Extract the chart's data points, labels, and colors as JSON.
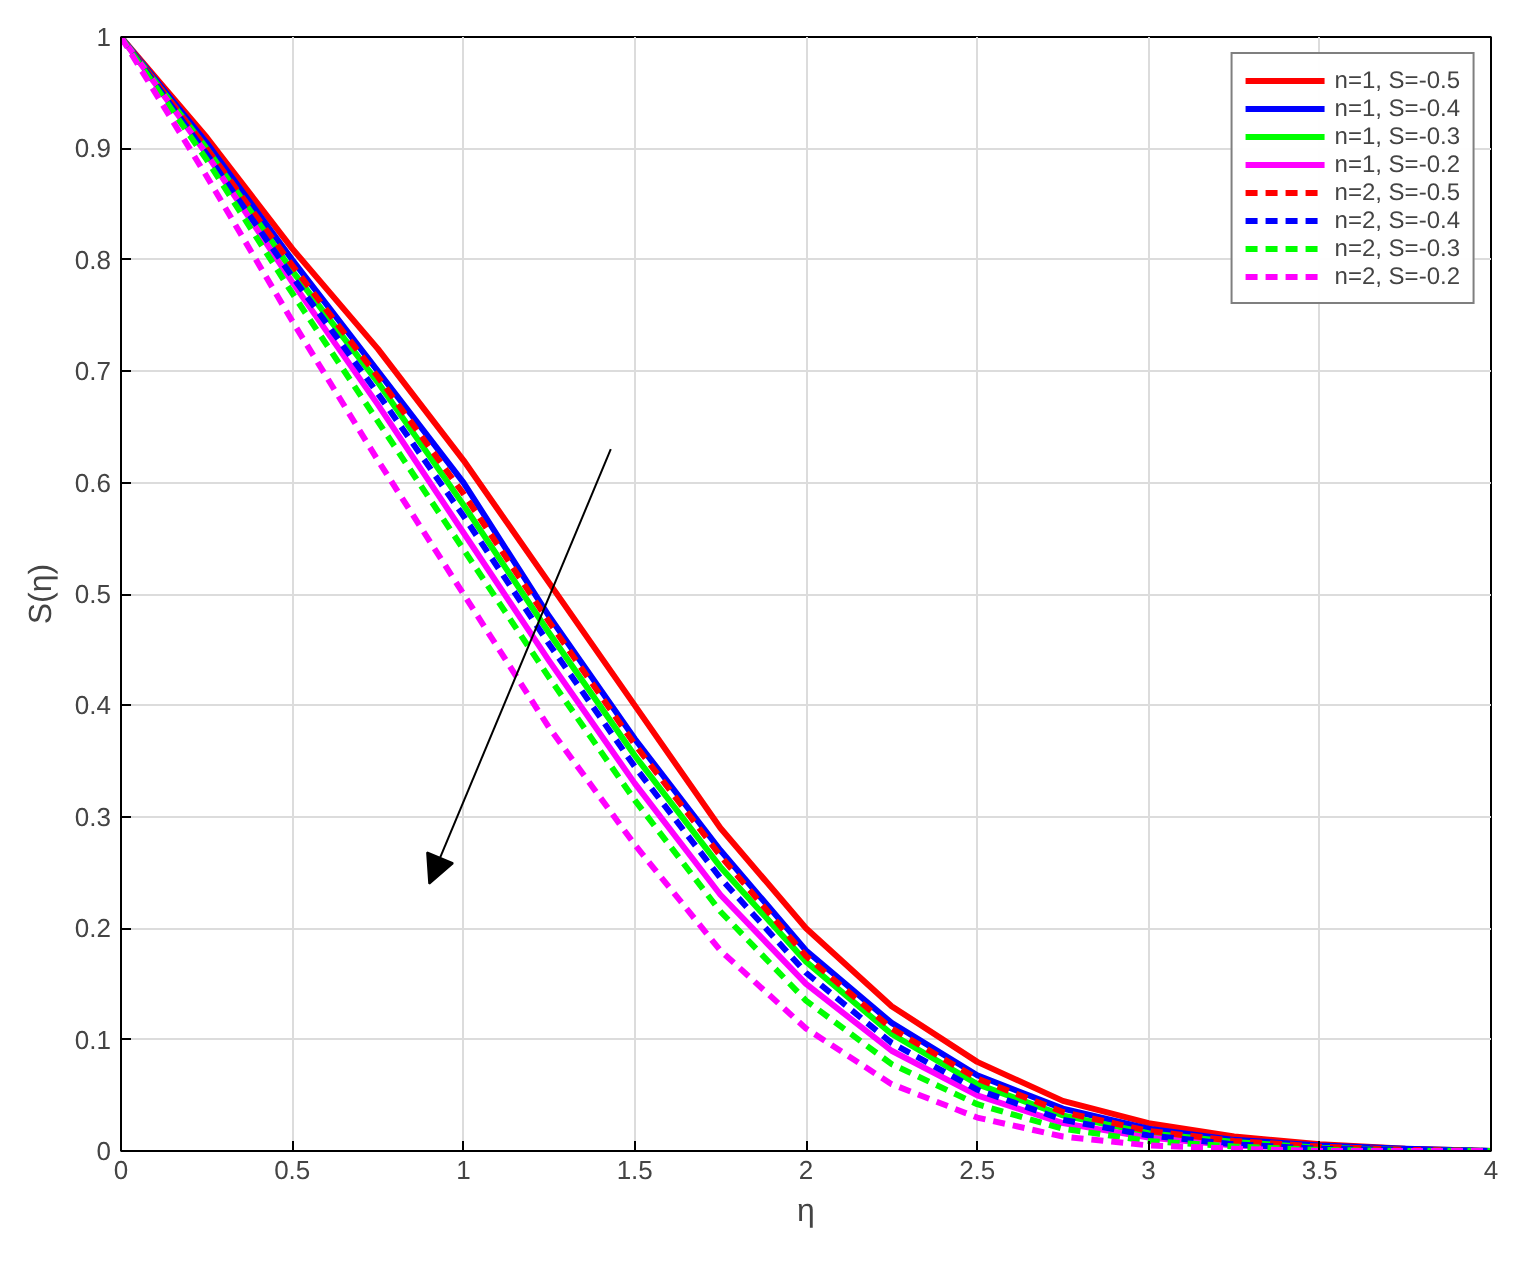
{
  "chart_data": {
    "type": "line",
    "xlabel": "η",
    "ylabel": "S(η)",
    "xlim": [
      0,
      4
    ],
    "ylim": [
      0,
      1
    ],
    "xticks": [
      0,
      0.5,
      1,
      1.5,
      2,
      2.5,
      3,
      3.5,
      4
    ],
    "yticks": [
      0,
      0.1,
      0.2,
      0.3,
      0.4,
      0.5,
      0.6,
      0.7,
      0.8,
      0.9,
      1
    ],
    "grid": true,
    "legend": "top right",
    "x": [
      0,
      0.25,
      0.5,
      0.75,
      1,
      1.25,
      1.5,
      1.75,
      2,
      2.25,
      2.5,
      2.75,
      3,
      3.25,
      3.5,
      3.75,
      4
    ],
    "series": [
      {
        "name": "n=1, S=-0.5",
        "color": "#ff0000",
        "line_style": "solid",
        "values": [
          1,
          0.91,
          0.81,
          0.72,
          0.62,
          0.51,
          0.4,
          0.29,
          0.2,
          0.13,
          0.08,
          0.045,
          0.025,
          0.013,
          0.006,
          0.002,
          0
        ]
      },
      {
        "name": "n=1, S=-0.4",
        "color": "#0000ff",
        "line_style": "solid",
        "values": [
          1,
          0.905,
          0.8,
          0.7,
          0.6,
          0.48,
          0.37,
          0.27,
          0.18,
          0.115,
          0.068,
          0.038,
          0.02,
          0.01,
          0.005,
          0.002,
          0
        ]
      },
      {
        "name": "n=1, S=-0.3",
        "color": "#00ff00",
        "line_style": "solid",
        "values": [
          1,
          0.9,
          0.79,
          0.69,
          0.58,
          0.465,
          0.355,
          0.255,
          0.17,
          0.105,
          0.06,
          0.032,
          0.016,
          0.008,
          0.003,
          0.001,
          0
        ]
      },
      {
        "name": "n=1, S=-0.2",
        "color": "#ff00ff",
        "line_style": "solid",
        "values": [
          1,
          0.895,
          0.78,
          0.67,
          0.555,
          0.44,
          0.33,
          0.23,
          0.15,
          0.09,
          0.05,
          0.025,
          0.012,
          0.005,
          0.002,
          0,
          0
        ]
      },
      {
        "name": "n=2, S=-0.5",
        "color": "#ff0000",
        "line_style": "dashed",
        "values": [
          1,
          0.9,
          0.795,
          0.695,
          0.59,
          0.475,
          0.365,
          0.265,
          0.175,
          0.11,
          0.065,
          0.035,
          0.018,
          0.009,
          0.004,
          0.001,
          0
        ]
      },
      {
        "name": "n=2, S=-0.4",
        "color": "#0000ff",
        "line_style": "dashed",
        "values": [
          1,
          0.895,
          0.785,
          0.68,
          0.57,
          0.455,
          0.345,
          0.245,
          0.16,
          0.097,
          0.055,
          0.028,
          0.014,
          0.006,
          0.002,
          0.001,
          0
        ]
      },
      {
        "name": "n=2, S=-0.3",
        "color": "#00ff00",
        "line_style": "dashed",
        "values": [
          1,
          0.89,
          0.77,
          0.655,
          0.54,
          0.425,
          0.315,
          0.215,
          0.135,
          0.078,
          0.042,
          0.02,
          0.009,
          0.004,
          0.001,
          0,
          0
        ]
      },
      {
        "name": "n=2, S=-0.2",
        "color": "#ff00ff",
        "line_style": "dashed",
        "values": [
          1,
          0.875,
          0.745,
          0.62,
          0.5,
          0.38,
          0.275,
          0.18,
          0.11,
          0.06,
          0.03,
          0.013,
          0.005,
          0.002,
          0,
          0,
          0
        ]
      }
    ]
  }
}
